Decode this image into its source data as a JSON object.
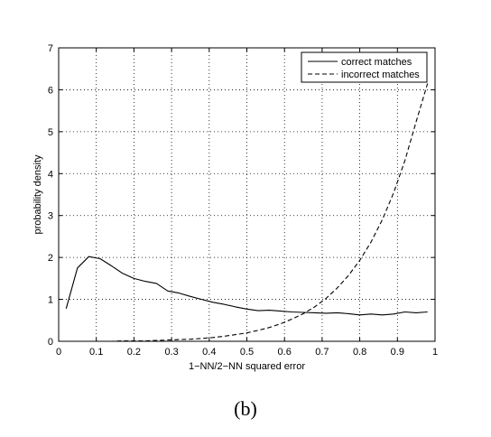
{
  "chart_data": {
    "type": "line",
    "title": "",
    "xlabel": "1−NN/2−NN squared error",
    "ylabel": "probability density",
    "xlim": [
      0,
      1
    ],
    "ylim": [
      0,
      7
    ],
    "xticks": [
      0,
      0.1,
      0.2,
      0.3,
      0.4,
      0.5,
      0.6,
      0.7,
      0.8,
      0.9,
      1
    ],
    "xtick_labels": [
      "0",
      "0.1",
      "0.2",
      "0.3",
      "0.4",
      "0.5",
      "0.6",
      "0.7",
      "0.8",
      "0.9",
      "1"
    ],
    "yticks": [
      0,
      1,
      2,
      3,
      4,
      5,
      6,
      7
    ],
    "ytick_labels": [
      "0",
      "1",
      "2",
      "3",
      "4",
      "5",
      "6",
      "7"
    ],
    "grid": true,
    "legend_position": "top-right",
    "series": [
      {
        "name": "correct matches",
        "style": "solid",
        "color": "#000000",
        "x": [
          0.02,
          0.05,
          0.08,
          0.11,
          0.14,
          0.17,
          0.2,
          0.23,
          0.26,
          0.29,
          0.32,
          0.35,
          0.38,
          0.41,
          0.44,
          0.47,
          0.5,
          0.53,
          0.56,
          0.59,
          0.62,
          0.65,
          0.68,
          0.71,
          0.74,
          0.77,
          0.8,
          0.83,
          0.86,
          0.89,
          0.92,
          0.95,
          0.98
        ],
        "y": [
          0.78,
          1.75,
          2.02,
          1.97,
          1.8,
          1.62,
          1.5,
          1.43,
          1.38,
          1.2,
          1.15,
          1.07,
          1.0,
          0.93,
          0.88,
          0.82,
          0.77,
          0.73,
          0.74,
          0.72,
          0.7,
          0.69,
          0.68,
          0.67,
          0.68,
          0.66,
          0.63,
          0.65,
          0.63,
          0.65,
          0.7,
          0.68,
          0.7
        ]
      },
      {
        "name": "incorrect matches",
        "style": "dashed",
        "color": "#000000",
        "x": [
          0.02,
          0.05,
          0.08,
          0.11,
          0.14,
          0.17,
          0.2,
          0.23,
          0.26,
          0.29,
          0.32,
          0.35,
          0.38,
          0.41,
          0.44,
          0.47,
          0.5,
          0.53,
          0.56,
          0.59,
          0.62,
          0.65,
          0.68,
          0.71,
          0.74,
          0.77,
          0.8,
          0.83,
          0.86,
          0.89,
          0.92,
          0.95,
          0.98
        ],
        "y": [
          0.0,
          0.0,
          0.0,
          0.0,
          0.0,
          0.01,
          0.01,
          0.01,
          0.02,
          0.03,
          0.04,
          0.05,
          0.07,
          0.09,
          0.12,
          0.16,
          0.2,
          0.26,
          0.33,
          0.42,
          0.53,
          0.66,
          0.82,
          1.02,
          1.27,
          1.57,
          1.93,
          2.37,
          2.9,
          3.54,
          4.31,
          5.24,
          6.15
        ]
      }
    ]
  },
  "caption": "(b)"
}
